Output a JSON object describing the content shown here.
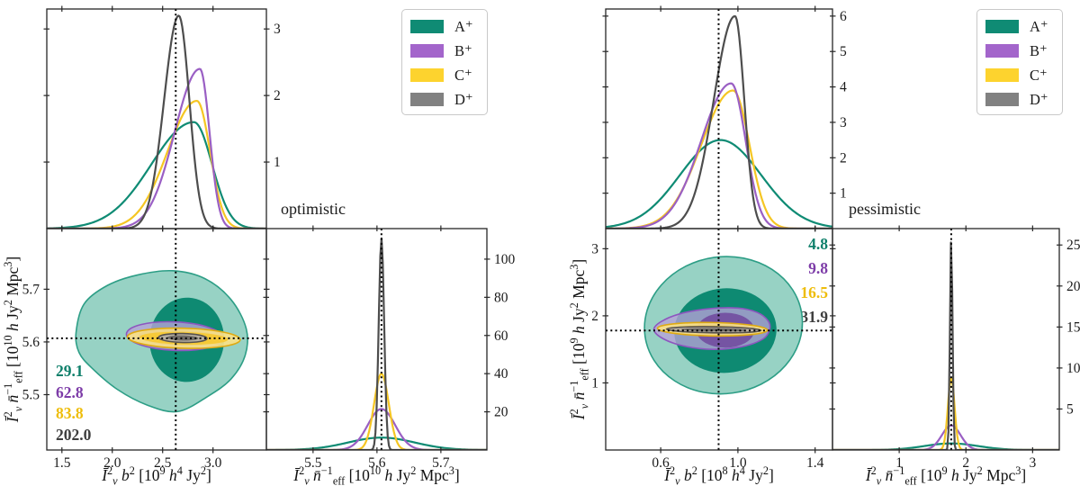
{
  "figure": {
    "left": {
      "condition_label": "optimistic",
      "snr_values": [
        {
          "value": "29.1",
          "color": "#0e7f6a"
        },
        {
          "value": "62.8",
          "color": "#7d3ca8"
        },
        {
          "value": "83.8",
          "color": "#eebd0b"
        },
        {
          "value": "202.0",
          "color": "#3e3e3e"
        }
      ],
      "xlabel_b2": "*Ī*^2_{*ν*} *b*^2  [10^9 *h*^4 Jy^2]",
      "xlabel_neff": "*Ī*^2_{*ν*} *n̄*^{−1}_{eff}  [10^{10} *h* Jy^2 Mpc^3]",
      "ylabel": "*Ī*^2_{*ν*} *n̄*^{−1}_{eff}  [10^{10} *h* Jy^2 Mpc^3]"
    },
    "right": {
      "condition_label": "pessimistic",
      "snr_values": [
        {
          "value": "4.8",
          "color": "#0e7f6a"
        },
        {
          "value": "9.8",
          "color": "#7d3ca8"
        },
        {
          "value": "16.5",
          "color": "#eebd0b"
        },
        {
          "value": "31.9",
          "color": "#3e3e3e"
        }
      ],
      "xlabel_b2": "*Ī*^2_{*ν*} *b*^2  [10^8 *h*^4 Jy^2]",
      "xlabel_neff": "*Ī*^2_{*ν*} *n̄*^{−1}_{eff}  [10^9 *h* Jy^2 Mpc^3]",
      "ylabel": "*Ī*^2_{*ν*} *n̄*^{−1}_{eff}  [10^9 *h* Jy^2 Mpc^3]"
    }
  },
  "legend": {
    "items": [
      {
        "label": "A⁺",
        "color": "#0f8b74"
      },
      {
        "label": "B⁺",
        "color": "#a365cb"
      },
      {
        "label": "C⁺",
        "color": "#fdd32e"
      },
      {
        "label": "D⁺",
        "color": "#818181"
      }
    ]
  },
  "chart_data": [
    {
      "id": "left-top",
      "type": "curve1d",
      "xlim": [
        1.35,
        3.53
      ],
      "ylim": [
        0,
        3.3
      ],
      "xticks": [
        1.5,
        2.0,
        2.5,
        3.0
      ],
      "xtick_labels": null,
      "yticks": [
        1,
        2,
        3
      ],
      "ytick_labels": [
        "1",
        "2",
        "3"
      ],
      "ytick_side": "right",
      "vline": 2.63,
      "curves": [
        {
          "name": "A+",
          "color": "#0f8b74",
          "center": 2.81,
          "sig_l": 0.42,
          "sig_r": 0.18,
          "peak": 1.6
        },
        {
          "name": "C+",
          "color": "#f5c623",
          "center": 2.84,
          "sig_l": 0.29,
          "sig_r": 0.13,
          "peak": 1.92
        },
        {
          "name": "B+",
          "color": "#9a5fc4",
          "center": 2.87,
          "sig_l": 0.25,
          "sig_r": 0.095,
          "peak": 2.4
        },
        {
          "name": "D+",
          "color": "#4d4d4d",
          "center": 2.66,
          "sig_l": 0.145,
          "sig_r": 0.105,
          "peak": 3.2
        }
      ]
    },
    {
      "id": "left-2d",
      "type": "contour2d",
      "xlim": [
        1.35,
        3.53
      ],
      "ylim": [
        5.395,
        5.815
      ],
      "xticks": [
        1.5,
        2.0,
        2.5,
        3.0
      ],
      "xtick_labels": [
        "1.5",
        "2.0",
        "2.5",
        "3.0"
      ],
      "yticks": [
        5.5,
        5.6,
        5.7
      ],
      "ytick_labels": [
        "5.5",
        "5.6",
        "5.7"
      ],
      "ytick_side": "left",
      "vline": 2.63,
      "hline": 5.607,
      "contours": [
        {
          "kind": "blob",
          "name": "A+ outer",
          "fill": "#97d2c4",
          "opacity": 1,
          "stroke": "#2d9e86",
          "points": [
            [
              1.64,
              5.617
            ],
            [
              1.72,
              5.672
            ],
            [
              1.95,
              5.707
            ],
            [
              2.25,
              5.727
            ],
            [
              2.6,
              5.735
            ],
            [
              2.92,
              5.72
            ],
            [
              3.18,
              5.68
            ],
            [
              3.33,
              5.625
            ],
            [
              3.32,
              5.575
            ],
            [
              3.18,
              5.53
            ],
            [
              2.95,
              5.497
            ],
            [
              2.65,
              5.468
            ],
            [
              2.35,
              5.48
            ],
            [
              2.05,
              5.51
            ],
            [
              1.8,
              5.55
            ],
            [
              1.67,
              5.58
            ]
          ]
        },
        {
          "kind": "ellipse",
          "name": "A+ inner",
          "fill": "#0e8a72",
          "opacity": 1,
          "stroke": "none",
          "cx": 2.74,
          "cy": 5.604,
          "rx": 0.37,
          "ry": 0.08,
          "rot": 3
        },
        {
          "kind": "ellipse",
          "name": "B+ outer",
          "fill": "#b7a2d8",
          "opacity": 0.8,
          "stroke": "#8d56bf",
          "cx": 2.62,
          "cy": 5.611,
          "rx": 0.48,
          "ry": 0.027,
          "rot": 2.5
        },
        {
          "kind": "ellipse",
          "name": "B+ inner",
          "fill": "#714a9e",
          "opacity": 0.88,
          "stroke": "none",
          "cx": 2.66,
          "cy": 5.609,
          "rx": 0.4,
          "ry": 0.016,
          "rot": 2.5
        },
        {
          "kind": "ellipse",
          "name": "C+ outer",
          "fill": "#f8e187",
          "opacity": 0.92,
          "stroke": "#dfaa12",
          "cx": 2.71,
          "cy": 5.607,
          "rx": 0.56,
          "ry": 0.019,
          "rot": 1.5
        },
        {
          "kind": "ellipse",
          "name": "C+ inner",
          "fill": "#f6ca39",
          "opacity": 1,
          "stroke": "none",
          "cx": 2.71,
          "cy": 5.607,
          "rx": 0.44,
          "ry": 0.012,
          "rot": 1.5
        },
        {
          "kind": "ellipse",
          "name": "D+ outer",
          "fill": "#b3aeaa",
          "opacity": 0.93,
          "stroke": "#57524e",
          "cx": 2.7,
          "cy": 5.6075,
          "rx": 0.24,
          "ry": 0.0085,
          "rot": 1.3
        },
        {
          "kind": "ellipse",
          "name": "D+ inner",
          "fill": "#6f6b67",
          "opacity": 1,
          "stroke": "none",
          "cx": 2.7,
          "cy": 5.6075,
          "rx": 0.155,
          "ry": 0.005,
          "rot": 1.3
        }
      ]
    },
    {
      "id": "left-1d",
      "type": "curve1d",
      "xlim": [
        5.427,
        5.772
      ],
      "ylim": [
        0,
        116
      ],
      "xticks": [
        5.5,
        5.6,
        5.7
      ],
      "xtick_labels": [
        "5.5",
        "5.6",
        "5.7"
      ],
      "yticks": [
        20,
        40,
        60,
        80,
        100
      ],
      "ytick_labels": [
        "20",
        "40",
        "60",
        "80",
        "100"
      ],
      "ytick_side": "right",
      "vline": 5.607,
      "curves": [
        {
          "name": "A+",
          "color": "#0f8b74",
          "center": 5.607,
          "sig_l": 0.052,
          "sig_r": 0.052,
          "peak": 6.5
        },
        {
          "name": "B+",
          "color": "#9a5fc4",
          "center": 5.607,
          "sig_l": 0.0215,
          "sig_r": 0.0215,
          "peak": 21.5
        },
        {
          "name": "C+",
          "color": "#f5c623",
          "center": 5.607,
          "sig_l": 0.0115,
          "sig_r": 0.0115,
          "peak": 40
        },
        {
          "name": "D+",
          "color": "#4d4d4d",
          "center": 5.607,
          "sig_l": 0.0042,
          "sig_r": 0.0042,
          "peak": 111
        }
      ]
    },
    {
      "id": "right-top",
      "type": "curve1d",
      "xlim": [
        0.315,
        1.49
      ],
      "ylim": [
        0,
        6.2
      ],
      "xticks": [
        0.6,
        1.0,
        1.4
      ],
      "xtick_labels": null,
      "yticks": [
        1,
        2,
        3,
        4,
        5,
        6
      ],
      "ytick_labels": [
        "1",
        "2",
        "3",
        "4",
        "5",
        "6"
      ],
      "ytick_side": "right",
      "vline": 0.9,
      "curves": [
        {
          "name": "A+",
          "color": "#0f8b74",
          "center": 0.91,
          "sig_l": 0.21,
          "sig_r": 0.21,
          "peak": 2.5
        },
        {
          "name": "C+",
          "color": "#f5c623",
          "center": 0.975,
          "sig_l": 0.165,
          "sig_r": 0.085,
          "peak": 3.9
        },
        {
          "name": "B+",
          "color": "#9a5fc4",
          "center": 0.965,
          "sig_l": 0.155,
          "sig_r": 0.075,
          "peak": 4.1
        },
        {
          "name": "D+",
          "color": "#4d4d4d",
          "center": 0.985,
          "sig_l": 0.11,
          "sig_r": 0.048,
          "peak": 6.0
        }
      ]
    },
    {
      "id": "right-2d",
      "type": "contour2d",
      "xlim": [
        0.315,
        1.49
      ],
      "ylim": [
        0,
        3.3
      ],
      "xticks": [
        0.6,
        1.0,
        1.4
      ],
      "xtick_labels": [
        "0.6",
        "1.0",
        "1.4"
      ],
      "yticks": [
        1,
        2,
        3
      ],
      "ytick_labels": [
        "1",
        "2",
        "3"
      ],
      "ytick_side": "left",
      "vline": 0.9,
      "hline": 1.78,
      "contours": [
        {
          "kind": "ellipse",
          "name": "A+ outer",
          "fill": "#97d2c4",
          "opacity": 1,
          "stroke": "#2d9e86",
          "cx": 0.925,
          "cy": 1.86,
          "rx": 0.41,
          "ry": 1.02,
          "rot": -8
        },
        {
          "kind": "ellipse",
          "name": "A+ inner",
          "fill": "#0e8a72",
          "opacity": 1,
          "stroke": "none",
          "cx": 0.935,
          "cy": 1.78,
          "rx": 0.265,
          "ry": 0.63,
          "rot": -4
        },
        {
          "kind": "blob",
          "name": "B+ outer",
          "fill": "#b7a2d8",
          "opacity": 0.78,
          "stroke": "#8d56bf",
          "points": [
            [
              0.565,
              1.79
            ],
            [
              0.6,
              1.91
            ],
            [
              0.7,
              2.03
            ],
            [
              0.85,
              2.105
            ],
            [
              1.0,
              2.115
            ],
            [
              1.1,
              2.05
            ],
            [
              1.155,
              1.93
            ],
            [
              1.165,
              1.8
            ],
            [
              1.13,
              1.655
            ],
            [
              1.02,
              1.54
            ],
            [
              0.87,
              1.5
            ],
            [
              0.72,
              1.55
            ],
            [
              0.615,
              1.655
            ]
          ]
        },
        {
          "kind": "ellipse",
          "name": "B+ inner",
          "fill": "#714a9e",
          "opacity": 0.88,
          "stroke": "none",
          "cx": 0.935,
          "cy": 1.785,
          "rx": 0.15,
          "ry": 0.26,
          "rot": 0
        },
        {
          "kind": "ellipse",
          "name": "C+ outer",
          "fill": "#f8e187",
          "opacity": 0.92,
          "stroke": "#dfaa12",
          "cx": 0.868,
          "cy": 1.8,
          "rx": 0.285,
          "ry": 0.1,
          "rot": 1
        },
        {
          "kind": "ellipse",
          "name": "C+ inner",
          "fill": "#f6ca39",
          "opacity": 1,
          "stroke": "none",
          "cx": 0.872,
          "cy": 1.798,
          "rx": 0.225,
          "ry": 0.055,
          "rot": 1
        },
        {
          "kind": "ellipse",
          "name": "D+ outer",
          "fill": "#b3aeaa",
          "opacity": 0.93,
          "stroke": "#57524e",
          "cx": 0.875,
          "cy": 1.792,
          "rx": 0.245,
          "ry": 0.045,
          "rot": 0.8
        },
        {
          "kind": "ellipse",
          "name": "D+ inner",
          "fill": "#6f6b67",
          "opacity": 1,
          "stroke": "none",
          "cx": 0.875,
          "cy": 1.792,
          "rx": 0.17,
          "ry": 0.025,
          "rot": 0.8
        }
      ]
    },
    {
      "id": "right-1d",
      "type": "curve1d",
      "xlim": [
        0,
        3.4
      ],
      "ylim": [
        0,
        27
      ],
      "xticks": [
        1,
        2,
        3
      ],
      "xtick_labels": [
        "1",
        "2",
        "3"
      ],
      "yticks": [
        5,
        10,
        15,
        20,
        25
      ],
      "ytick_labels": [
        "5",
        "10",
        "15",
        "20",
        "25"
      ],
      "ytick_side": "right",
      "vline": 1.78,
      "curves": [
        {
          "name": "A+",
          "color": "#0f8b74",
          "center": 1.78,
          "sig_l": 0.4,
          "sig_r": 0.4,
          "peak": 0.8
        },
        {
          "name": "B+",
          "color": "#9a5fc4",
          "center": 1.78,
          "sig_l": 0.14,
          "sig_r": 0.14,
          "peak": 3.0
        },
        {
          "name": "C+",
          "color": "#f5c623",
          "center": 1.78,
          "sig_l": 0.05,
          "sig_r": 0.05,
          "peak": 8.8
        },
        {
          "name": "D+",
          "color": "#4d4d4d",
          "center": 1.78,
          "sig_l": 0.019,
          "sig_r": 0.019,
          "peak": 26
        }
      ]
    }
  ]
}
